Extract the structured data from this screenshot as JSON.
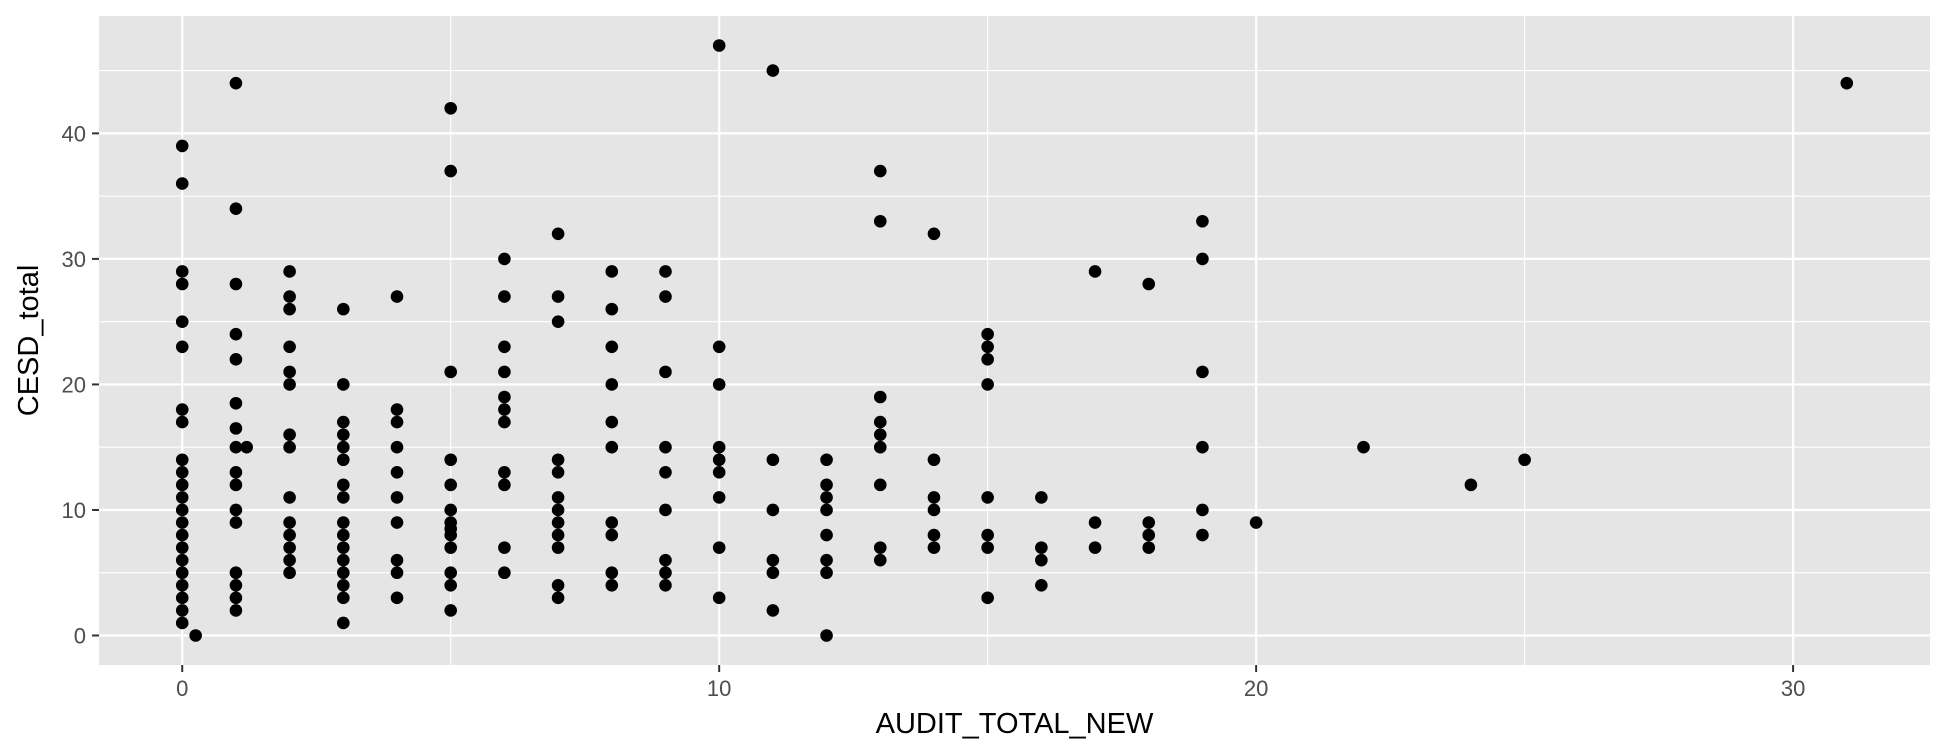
{
  "chart_data": {
    "type": "scatter",
    "title": "",
    "xlabel": "AUDIT_TOTAL_NEW",
    "ylabel": "CESD_total",
    "xlim": [
      -1.55,
      32.55
    ],
    "ylim": [
      -2.35,
      49.35
    ],
    "x_ticks": [
      0,
      10,
      20,
      30
    ],
    "x_tick_labels": [
      "0",
      "10",
      "20",
      "30"
    ],
    "y_ticks": [
      0,
      10,
      20,
      30,
      40
    ],
    "y_tick_labels": [
      "0",
      "10",
      "20",
      "30",
      "40"
    ],
    "grid": true,
    "legend": "none",
    "colors": {
      "panel": "#e5e5e5",
      "grid": "#ffffff",
      "points": "#000000",
      "tick_text": "#4d4d4d"
    },
    "points": [
      [
        0,
        1
      ],
      [
        0,
        2
      ],
      [
        0,
        3
      ],
      [
        0,
        4
      ],
      [
        0,
        5
      ],
      [
        0,
        6
      ],
      [
        0,
        7
      ],
      [
        0,
        8
      ],
      [
        0,
        9
      ],
      [
        0,
        10
      ],
      [
        0,
        11
      ],
      [
        0,
        12
      ],
      [
        0,
        13
      ],
      [
        0,
        14
      ],
      [
        0,
        17
      ],
      [
        0,
        18
      ],
      [
        0,
        23
      ],
      [
        0,
        25
      ],
      [
        0,
        28
      ],
      [
        0,
        29
      ],
      [
        0,
        36
      ],
      [
        0,
        39
      ],
      [
        0.25,
        0
      ],
      [
        1,
        2
      ],
      [
        1,
        3
      ],
      [
        1,
        4
      ],
      [
        1,
        5
      ],
      [
        1,
        9
      ],
      [
        1,
        10
      ],
      [
        1,
        12
      ],
      [
        1,
        13
      ],
      [
        1,
        15
      ],
      [
        1,
        16.5
      ],
      [
        1,
        18.5
      ],
      [
        1,
        22
      ],
      [
        1,
        24
      ],
      [
        1,
        28
      ],
      [
        1,
        34
      ],
      [
        1,
        44
      ],
      [
        1.2,
        15
      ],
      [
        2,
        5
      ],
      [
        2,
        6
      ],
      [
        2,
        7
      ],
      [
        2,
        8
      ],
      [
        2,
        9
      ],
      [
        2,
        11
      ],
      [
        2,
        15
      ],
      [
        2,
        16
      ],
      [
        2,
        20
      ],
      [
        2,
        21
      ],
      [
        2,
        23
      ],
      [
        2,
        26
      ],
      [
        2,
        27
      ],
      [
        2,
        29
      ],
      [
        3,
        1
      ],
      [
        3,
        3
      ],
      [
        3,
        4
      ],
      [
        3,
        5
      ],
      [
        3,
        6
      ],
      [
        3,
        7
      ],
      [
        3,
        8
      ],
      [
        3,
        9
      ],
      [
        3,
        11
      ],
      [
        3,
        12
      ],
      [
        3,
        14
      ],
      [
        3,
        15
      ],
      [
        3,
        16
      ],
      [
        3,
        17
      ],
      [
        3,
        20
      ],
      [
        3,
        26
      ],
      [
        4,
        3
      ],
      [
        4,
        5
      ],
      [
        4,
        6
      ],
      [
        4,
        9
      ],
      [
        4,
        11
      ],
      [
        4,
        13
      ],
      [
        4,
        15
      ],
      [
        4,
        17
      ],
      [
        4,
        18
      ],
      [
        4,
        27
      ],
      [
        5,
        2
      ],
      [
        5,
        4
      ],
      [
        5,
        5
      ],
      [
        5,
        7
      ],
      [
        5,
        8
      ],
      [
        5,
        8.5
      ],
      [
        5,
        9
      ],
      [
        5,
        10
      ],
      [
        5,
        12
      ],
      [
        5,
        14
      ],
      [
        5,
        21
      ],
      [
        5,
        37
      ],
      [
        5,
        42
      ],
      [
        6,
        5
      ],
      [
        6,
        7
      ],
      [
        6,
        12
      ],
      [
        6,
        13
      ],
      [
        6,
        17
      ],
      [
        6,
        18
      ],
      [
        6,
        19
      ],
      [
        6,
        21
      ],
      [
        6,
        23
      ],
      [
        6,
        27
      ],
      [
        6,
        30
      ],
      [
        7,
        3
      ],
      [
        7,
        4
      ],
      [
        7,
        7
      ],
      [
        7,
        8
      ],
      [
        7,
        9
      ],
      [
        7,
        10
      ],
      [
        7,
        11
      ],
      [
        7,
        13
      ],
      [
        7,
        14
      ],
      [
        7,
        25
      ],
      [
        7,
        27
      ],
      [
        7,
        32
      ],
      [
        8,
        4
      ],
      [
        8,
        5
      ],
      [
        8,
        8
      ],
      [
        8,
        9
      ],
      [
        8,
        15
      ],
      [
        8,
        17
      ],
      [
        8,
        20
      ],
      [
        8,
        23
      ],
      [
        8,
        26
      ],
      [
        8,
        29
      ],
      [
        9,
        4
      ],
      [
        9,
        5
      ],
      [
        9,
        6
      ],
      [
        9,
        10
      ],
      [
        9,
        13
      ],
      [
        9,
        15
      ],
      [
        9,
        21
      ],
      [
        9,
        27
      ],
      [
        9,
        29
      ],
      [
        10,
        3
      ],
      [
        10,
        7
      ],
      [
        10,
        11
      ],
      [
        10,
        13
      ],
      [
        10,
        14
      ],
      [
        10,
        15
      ],
      [
        10,
        20
      ],
      [
        10,
        23
      ],
      [
        10,
        47
      ],
      [
        11,
        2
      ],
      [
        11,
        5
      ],
      [
        11,
        6
      ],
      [
        11,
        10
      ],
      [
        11,
        14
      ],
      [
        11,
        45
      ],
      [
        12,
        0
      ],
      [
        12,
        5
      ],
      [
        12,
        6
      ],
      [
        12,
        8
      ],
      [
        12,
        10
      ],
      [
        12,
        11
      ],
      [
        12,
        12
      ],
      [
        12,
        14
      ],
      [
        13,
        6
      ],
      [
        13,
        7
      ],
      [
        13,
        12
      ],
      [
        13,
        15
      ],
      [
        13,
        16
      ],
      [
        13,
        17
      ],
      [
        13,
        19
      ],
      [
        13,
        33
      ],
      [
        13,
        37
      ],
      [
        14,
        7
      ],
      [
        14,
        8
      ],
      [
        14,
        10
      ],
      [
        14,
        11
      ],
      [
        14,
        14
      ],
      [
        14,
        32
      ],
      [
        15,
        3
      ],
      [
        15,
        7
      ],
      [
        15,
        8
      ],
      [
        15,
        11
      ],
      [
        15,
        20
      ],
      [
        15,
        22
      ],
      [
        15,
        23
      ],
      [
        15,
        24
      ],
      [
        16,
        4
      ],
      [
        16,
        6
      ],
      [
        16,
        7
      ],
      [
        16,
        11
      ],
      [
        17,
        7
      ],
      [
        17,
        9
      ],
      [
        17,
        29
      ],
      [
        18,
        7
      ],
      [
        18,
        8
      ],
      [
        18,
        9
      ],
      [
        18,
        28
      ],
      [
        19,
        8
      ],
      [
        19,
        10
      ],
      [
        19,
        15
      ],
      [
        19,
        21
      ],
      [
        19,
        30
      ],
      [
        19,
        33
      ],
      [
        20,
        9
      ],
      [
        22,
        15
      ],
      [
        24,
        12
      ],
      [
        25,
        14
      ],
      [
        31,
        44
      ]
    ]
  }
}
